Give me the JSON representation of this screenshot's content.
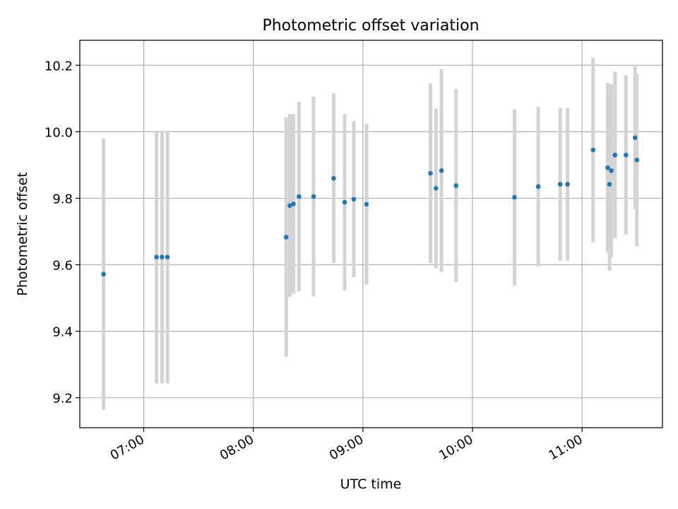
{
  "chart_data": {
    "type": "scatter",
    "title": "Photometric offset variation",
    "xlabel": "UTC time",
    "ylabel": "Photometric offset",
    "x_tick_labels": [
      "07:00",
      "08:00",
      "09:00",
      "10:00",
      "11:00"
    ],
    "x_ticks": [
      "07:00",
      "08:00",
      "09:00",
      "10:00",
      "11:00"
    ],
    "xlim": [
      "06:25",
      "11:44"
    ],
    "ylim": [
      9.11,
      10.275
    ],
    "y_ticks": [
      9.2,
      9.4,
      9.6,
      9.8,
      10.0,
      10.2
    ],
    "y_tick_labels": [
      "9.2",
      "9.4",
      "9.6",
      "9.8",
      "10.0",
      "10.2"
    ],
    "grid": true,
    "colors": {
      "points": "#1f77b4",
      "errorbars": "#d3d3d3",
      "grid": "#b0b0b0"
    },
    "series": [
      {
        "points": [
          {
            "x": "06:38",
            "y": 9.572,
            "err": 0.408
          },
          {
            "x": "07:07",
            "y": 9.623,
            "err": 0.38
          },
          {
            "x": "07:10",
            "y": 9.623,
            "err": 0.38
          },
          {
            "x": "07:13",
            "y": 9.623,
            "err": 0.38
          },
          {
            "x": "08:18",
            "y": 9.683,
            "err": 0.36
          },
          {
            "x": "08:20",
            "y": 9.778,
            "err": 0.275
          },
          {
            "x": "08:22",
            "y": 9.783,
            "err": 0.27
          },
          {
            "x": "08:25",
            "y": 9.805,
            "err": 0.285
          },
          {
            "x": "08:33",
            "y": 9.805,
            "err": 0.3
          },
          {
            "x": "08:44",
            "y": 9.86,
            "err": 0.255
          },
          {
            "x": "08:50",
            "y": 9.788,
            "err": 0.265
          },
          {
            "x": "08:55",
            "y": 9.797,
            "err": 0.235
          },
          {
            "x": "09:02",
            "y": 9.782,
            "err": 0.242
          },
          {
            "x": "09:37",
            "y": 9.875,
            "err": 0.27
          },
          {
            "x": "09:40",
            "y": 9.83,
            "err": 0.24
          },
          {
            "x": "09:43",
            "y": 9.883,
            "err": 0.305
          },
          {
            "x": "09:51",
            "y": 9.838,
            "err": 0.29
          },
          {
            "x": "10:23",
            "y": 9.803,
            "err": 0.265
          },
          {
            "x": "10:36",
            "y": 9.835,
            "err": 0.24
          },
          {
            "x": "10:48",
            "y": 9.842,
            "err": 0.23
          },
          {
            "x": "10:52",
            "y": 9.842,
            "err": 0.23
          },
          {
            "x": "11:06",
            "y": 9.945,
            "err": 0.278
          },
          {
            "x": "11:14",
            "y": 9.892,
            "err": 0.255
          },
          {
            "x": "11:15",
            "y": 9.842,
            "err": 0.26
          },
          {
            "x": "11:16",
            "y": 9.883,
            "err": 0.26
          },
          {
            "x": "11:18",
            "y": 9.93,
            "err": 0.25
          },
          {
            "x": "11:24",
            "y": 9.93,
            "err": 0.24
          },
          {
            "x": "11:29",
            "y": 9.982,
            "err": 0.215
          },
          {
            "x": "11:30",
            "y": 9.915,
            "err": 0.26
          }
        ]
      }
    ]
  }
}
